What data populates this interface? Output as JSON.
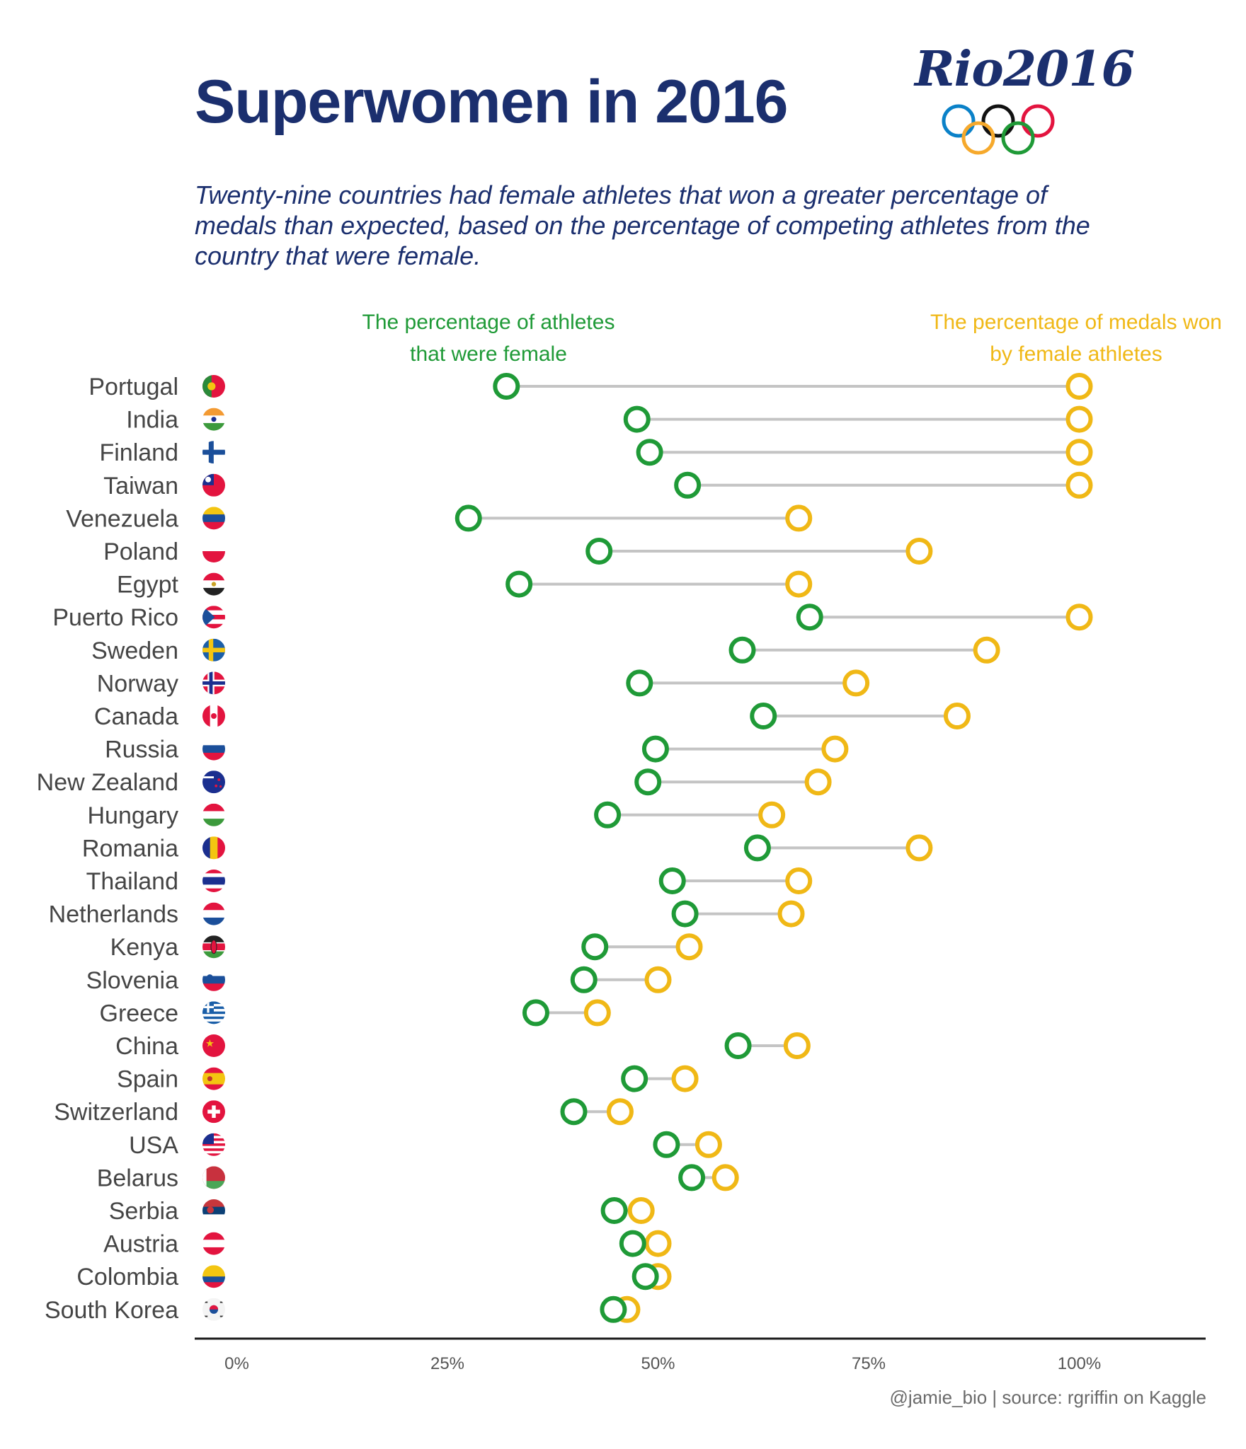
{
  "header": {
    "title": "Superwomen in 2016",
    "subtitle": "Twenty-nine countries had female athletes that won a greater percentage of medals than expected, based on the percentage of competing athletes from the country that were female.",
    "logo_text": "Rio2016"
  },
  "legend": {
    "athletes": "The percentage of athletes that were female",
    "medals": "The percentage of medals won by female athletes"
  },
  "colors": {
    "athletes": "#1f9a37",
    "medals": "#f0b816",
    "connector": "#c4c4c4",
    "title": "#1b2f6e",
    "label": "#454545",
    "rings": [
      "#0a81c8",
      "#f6a92c",
      "#111111",
      "#1f9a37",
      "#e3143f"
    ]
  },
  "chart_data": {
    "type": "dumbbell",
    "xlim": [
      -0.05,
      1.15
    ],
    "xticks": [
      {
        "value": 0,
        "label": "0%"
      },
      {
        "value": 0.25,
        "label": "25%"
      },
      {
        "value": 0.5,
        "label": "50%"
      },
      {
        "value": 0.75,
        "label": "75%"
      },
      {
        "value": 1.0,
        "label": "100%"
      }
    ],
    "rows": [
      {
        "country": "Portugal",
        "athletes": 0.32,
        "medals": 1.0,
        "flag": "portugal-flag-icon"
      },
      {
        "country": "India",
        "athletes": 0.475,
        "medals": 1.0,
        "flag": "india-flag-icon"
      },
      {
        "country": "Finland",
        "athletes": 0.49,
        "medals": 1.0,
        "flag": "finland-flag-icon"
      },
      {
        "country": "Taiwan",
        "athletes": 0.535,
        "medals": 1.0,
        "flag": "taiwan-flag-icon"
      },
      {
        "country": "Venezuela",
        "athletes": 0.275,
        "medals": 0.667,
        "flag": "venezuela-flag-icon"
      },
      {
        "country": "Poland",
        "athletes": 0.43,
        "medals": 0.81,
        "flag": "poland-flag-icon"
      },
      {
        "country": "Egypt",
        "athletes": 0.335,
        "medals": 0.667,
        "flag": "egypt-flag-icon"
      },
      {
        "country": "Puerto Rico",
        "athletes": 0.68,
        "medals": 1.0,
        "flag": "puerto-rico-flag-icon"
      },
      {
        "country": "Sweden",
        "athletes": 0.6,
        "medals": 0.89,
        "flag": "sweden-flag-icon"
      },
      {
        "country": "Norway",
        "athletes": 0.478,
        "medals": 0.735,
        "flag": "norway-flag-icon"
      },
      {
        "country": "Canada",
        "athletes": 0.625,
        "medals": 0.855,
        "flag": "canada-flag-icon"
      },
      {
        "country": "Russia",
        "athletes": 0.497,
        "medals": 0.71,
        "flag": "russia-flag-icon"
      },
      {
        "country": "New Zealand",
        "athletes": 0.488,
        "medals": 0.69,
        "flag": "new-zealand-flag-icon"
      },
      {
        "country": "Hungary",
        "athletes": 0.44,
        "medals": 0.635,
        "flag": "hungary-flag-icon"
      },
      {
        "country": "Romania",
        "athletes": 0.618,
        "medals": 0.81,
        "flag": "romania-flag-icon"
      },
      {
        "country": "Thailand",
        "athletes": 0.517,
        "medals": 0.667,
        "flag": "thailand-flag-icon"
      },
      {
        "country": "Netherlands",
        "athletes": 0.532,
        "medals": 0.658,
        "flag": "netherlands-flag-icon"
      },
      {
        "country": "Kenya",
        "athletes": 0.425,
        "medals": 0.537,
        "flag": "kenya-flag-icon"
      },
      {
        "country": "Slovenia",
        "athletes": 0.412,
        "medals": 0.5,
        "flag": "slovenia-flag-icon"
      },
      {
        "country": "Greece",
        "athletes": 0.355,
        "medals": 0.428,
        "flag": "greece-flag-icon"
      },
      {
        "country": "China",
        "athletes": 0.595,
        "medals": 0.665,
        "flag": "china-flag-icon"
      },
      {
        "country": "Spain",
        "athletes": 0.472,
        "medals": 0.532,
        "flag": "spain-flag-icon"
      },
      {
        "country": "Switzerland",
        "athletes": 0.4,
        "medals": 0.455,
        "flag": "switzerland-flag-icon"
      },
      {
        "country": "USA",
        "athletes": 0.51,
        "medals": 0.56,
        "flag": "usa-flag-icon"
      },
      {
        "country": "Belarus",
        "athletes": 0.54,
        "medals": 0.58,
        "flag": "belarus-flag-icon"
      },
      {
        "country": "Serbia",
        "athletes": 0.448,
        "medals": 0.48,
        "flag": "serbia-flag-icon"
      },
      {
        "country": "Austria",
        "athletes": 0.47,
        "medals": 0.5,
        "flag": "austria-flag-icon"
      },
      {
        "country": "Colombia",
        "athletes": 0.485,
        "medals": 0.5,
        "flag": "colombia-flag-icon"
      },
      {
        "country": "South Korea",
        "athletes": 0.447,
        "medals": 0.463,
        "flag": "south-korea-flag-icon"
      }
    ]
  },
  "footer": {
    "credit": "@jamie_bio | source: rgriffin on Kaggle"
  }
}
